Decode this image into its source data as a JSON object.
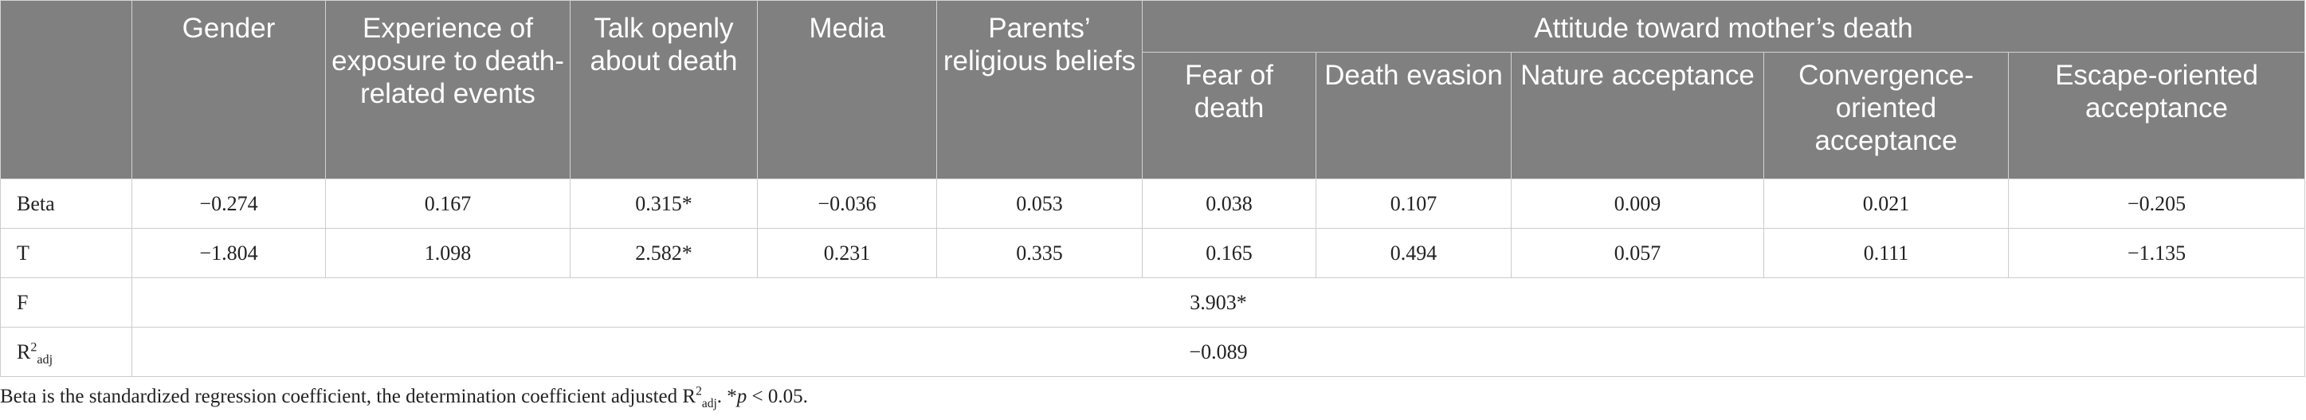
{
  "table": {
    "headers": {
      "top": [
        "",
        "Gender",
        "Experience of exposure to death-related events",
        "Talk openly about death",
        "Media",
        "Parents’ religious beliefs"
      ],
      "group": "Attitude toward mother’s death",
      "sub": [
        "Fear of death",
        "Death evasion",
        "Nature acceptance",
        "Convergence-oriented acceptance",
        "Escape-oriented acceptance"
      ]
    },
    "rows": [
      {
        "label": "Beta",
        "values": [
          "−0.274",
          "0.167",
          "0.315*",
          "−0.036",
          "0.053",
          "0.038",
          "0.107",
          "0.009",
          "0.021",
          "−0.205"
        ]
      },
      {
        "label": "T",
        "values": [
          "−1.804",
          "1.098",
          "2.582*",
          "0.231",
          "0.335",
          "0.165",
          "0.494",
          "0.057",
          "0.111",
          "−1.135"
        ]
      }
    ],
    "f_row": {
      "label": "F",
      "value": "3.903*"
    },
    "r2_row": {
      "label_main": "R",
      "label_sup": "2",
      "label_sub": "adj",
      "value": "−0.089"
    }
  },
  "note": {
    "part1": "Beta is the standardized regression coefficient, the determination coefficient adjusted R",
    "sup": "2",
    "sub": "adj",
    "part2": ". *",
    "p": "p",
    "part3": " < 0.05."
  }
}
